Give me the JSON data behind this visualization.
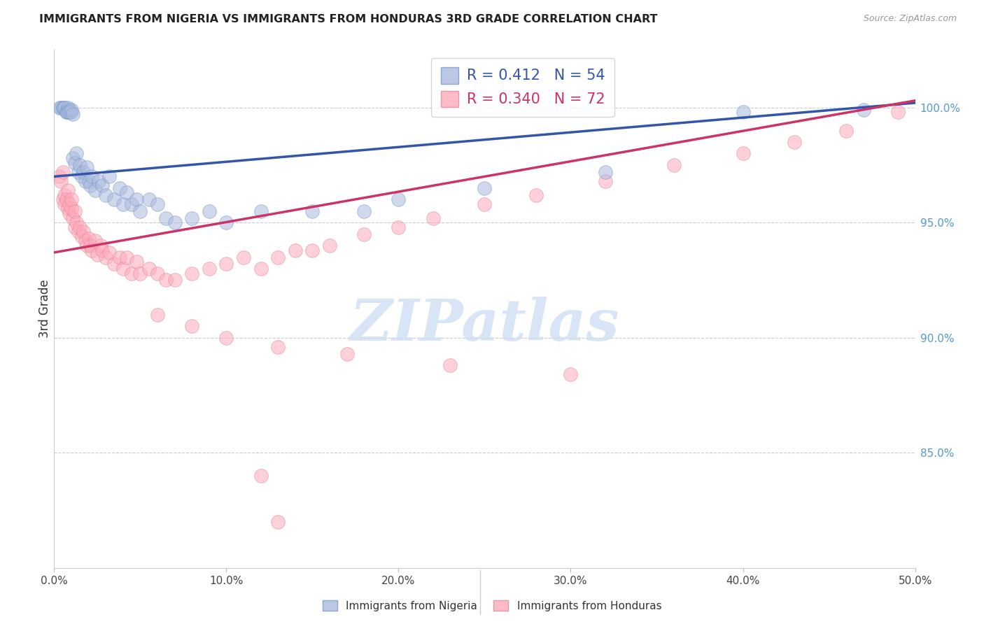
{
  "title": "IMMIGRANTS FROM NIGERIA VS IMMIGRANTS FROM HONDURAS 3RD GRADE CORRELATION CHART",
  "source": "Source: ZipAtlas.com",
  "ylabel": "3rd Grade",
  "legend_blue_R": "0.412",
  "legend_blue_N": "54",
  "legend_pink_R": "0.340",
  "legend_pink_N": "72",
  "legend_blue_label": "Immigrants from Nigeria",
  "legend_pink_label": "Immigrants from Honduras",
  "blue_color": "#AABBDD",
  "blue_edge": "#7799CC",
  "pink_color": "#FFAABB",
  "pink_edge": "#DD8899",
  "line_blue_color": "#3355AA",
  "line_pink_color": "#CC3366",
  "right_label_color": "#5599CC",
  "grid_color": "#CCCCCC",
  "xlim_min": 0.0,
  "xlim_max": 0.5,
  "ylim_min": 0.8,
  "ylim_max": 1.025,
  "yticks": [
    0.85,
    0.9,
    0.95,
    1.0
  ],
  "ytick_labels": [
    "85.0%",
    "90.0%",
    "95.0%",
    "100.0%"
  ],
  "xticks": [
    0.0,
    0.1,
    0.2,
    0.3,
    0.4,
    0.5
  ],
  "xtick_labels": [
    "0.0%",
    "10.0%",
    "20.0%",
    "30.0%",
    "40.0%",
    "50.0%"
  ],
  "blue_line_y0": 0.97,
  "blue_line_y1": 1.002,
  "pink_line_y0": 0.937,
  "pink_line_y1": 1.003,
  "watermark_text": "ZIPatlas",
  "nigeria_x": [
    0.003,
    0.004,
    0.005,
    0.005,
    0.006,
    0.006,
    0.007,
    0.007,
    0.008,
    0.008,
    0.009,
    0.009,
    0.01,
    0.01,
    0.011,
    0.011,
    0.012,
    0.013,
    0.014,
    0.015,
    0.016,
    0.017,
    0.018,
    0.019,
    0.02,
    0.021,
    0.022,
    0.024,
    0.026,
    0.028,
    0.03,
    0.032,
    0.035,
    0.038,
    0.04,
    0.042,
    0.045,
    0.048,
    0.05,
    0.055,
    0.06,
    0.065,
    0.07,
    0.08,
    0.09,
    0.1,
    0.12,
    0.15,
    0.18,
    0.2,
    0.25,
    0.32,
    0.4,
    0.47
  ],
  "nigeria_y": [
    1.0,
    1.0,
    1.0,
    1.0,
    1.0,
    1.0,
    0.998,
    0.998,
    1.0,
    0.998,
    0.999,
    0.998,
    0.998,
    0.999,
    0.997,
    0.978,
    0.976,
    0.98,
    0.972,
    0.975,
    0.97,
    0.972,
    0.968,
    0.974,
    0.968,
    0.966,
    0.97,
    0.964,
    0.968,
    0.966,
    0.962,
    0.97,
    0.96,
    0.965,
    0.958,
    0.963,
    0.958,
    0.96,
    0.955,
    0.96,
    0.958,
    0.952,
    0.95,
    0.952,
    0.955,
    0.95,
    0.955,
    0.955,
    0.955,
    0.96,
    0.965,
    0.972,
    0.998,
    0.999
  ],
  "honduras_x": [
    0.003,
    0.004,
    0.005,
    0.005,
    0.006,
    0.006,
    0.007,
    0.008,
    0.008,
    0.009,
    0.009,
    0.01,
    0.01,
    0.011,
    0.012,
    0.012,
    0.013,
    0.014,
    0.015,
    0.016,
    0.017,
    0.018,
    0.019,
    0.02,
    0.021,
    0.022,
    0.024,
    0.025,
    0.027,
    0.028,
    0.03,
    0.032,
    0.035,
    0.038,
    0.04,
    0.042,
    0.045,
    0.048,
    0.05,
    0.055,
    0.06,
    0.065,
    0.07,
    0.08,
    0.09,
    0.1,
    0.11,
    0.12,
    0.13,
    0.14,
    0.15,
    0.16,
    0.18,
    0.2,
    0.22,
    0.25,
    0.28,
    0.32,
    0.36,
    0.4,
    0.43,
    0.46,
    0.49,
    0.06,
    0.08,
    0.1,
    0.13,
    0.17,
    0.23,
    0.3,
    0.12,
    0.13
  ],
  "honduras_y": [
    0.97,
    0.968,
    0.972,
    0.96,
    0.962,
    0.958,
    0.96,
    0.956,
    0.964,
    0.954,
    0.958,
    0.956,
    0.96,
    0.952,
    0.955,
    0.948,
    0.95,
    0.946,
    0.948,
    0.944,
    0.946,
    0.942,
    0.94,
    0.943,
    0.94,
    0.938,
    0.942,
    0.936,
    0.94,
    0.938,
    0.935,
    0.937,
    0.932,
    0.935,
    0.93,
    0.935,
    0.928,
    0.933,
    0.928,
    0.93,
    0.928,
    0.925,
    0.925,
    0.928,
    0.93,
    0.932,
    0.935,
    0.93,
    0.935,
    0.938,
    0.938,
    0.94,
    0.945,
    0.948,
    0.952,
    0.958,
    0.962,
    0.968,
    0.975,
    0.98,
    0.985,
    0.99,
    0.998,
    0.91,
    0.905,
    0.9,
    0.896,
    0.893,
    0.888,
    0.884,
    0.84,
    0.82
  ]
}
